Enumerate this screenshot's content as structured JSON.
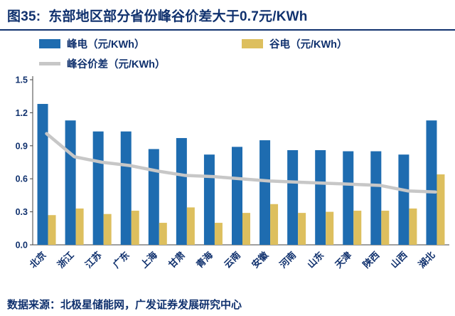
{
  "header": {
    "title": "图35:  东部地区部分省份峰谷价差大于0.7元/KWh"
  },
  "legend": [
    {
      "label": "峰电（元/KWh）",
      "color": "#1e6cb0",
      "type": "bar"
    },
    {
      "label": "谷电（元/KWh）",
      "color": "#ddbf5e",
      "type": "bar"
    },
    {
      "label": "峰谷价差（元/KWh）",
      "color": "#c7c7c7",
      "type": "line"
    }
  ],
  "footer": {
    "source": "数据来源：北极星储能网，广发证券发展研究中心"
  },
  "colors": {
    "title_navy": "#10316e",
    "axis": "#404040",
    "peak_blue": "#1e6cb0",
    "valley_yellow": "#ddbf5e",
    "diff_gray": "#c7c7c7"
  },
  "chart_data": {
    "type": "bar",
    "title": "东部地区部分省份峰谷价差大于0.7元/KWh",
    "categories": [
      "北京",
      "浙江",
      "江苏",
      "广东",
      "上海",
      "甘肃",
      "青海",
      "云南",
      "安徽",
      "河南",
      "山东",
      "天津",
      "陕西",
      "山西",
      "湖北"
    ],
    "series": [
      {
        "name": "峰电（元/KWh）",
        "type": "bar",
        "color": "#1e6cb0",
        "values": [
          1.28,
          1.13,
          1.03,
          1.03,
          0.87,
          0.97,
          0.82,
          0.89,
          0.95,
          0.86,
          0.86,
          0.85,
          0.85,
          0.82,
          1.13
        ]
      },
      {
        "name": "谷电（元/KWh）",
        "type": "bar",
        "color": "#ddbf5e",
        "values": [
          0.27,
          0.33,
          0.28,
          0.31,
          0.2,
          0.34,
          0.2,
          0.29,
          0.37,
          0.29,
          0.3,
          0.31,
          0.31,
          0.33,
          0.64
        ]
      },
      {
        "name": "峰谷价差（元/KWh）",
        "type": "line",
        "color": "#c7c7c7",
        "values": [
          1.01,
          0.8,
          0.75,
          0.72,
          0.67,
          0.63,
          0.62,
          0.6,
          0.58,
          0.57,
          0.56,
          0.55,
          0.54,
          0.49,
          0.48
        ]
      }
    ],
    "xlabel": "",
    "ylabel": "",
    "ylim": [
      0,
      1.5
    ],
    "yticks": [
      0,
      0.3,
      0.6,
      0.9,
      1.2,
      1.5
    ],
    "grid": false,
    "legend_position": "top"
  }
}
